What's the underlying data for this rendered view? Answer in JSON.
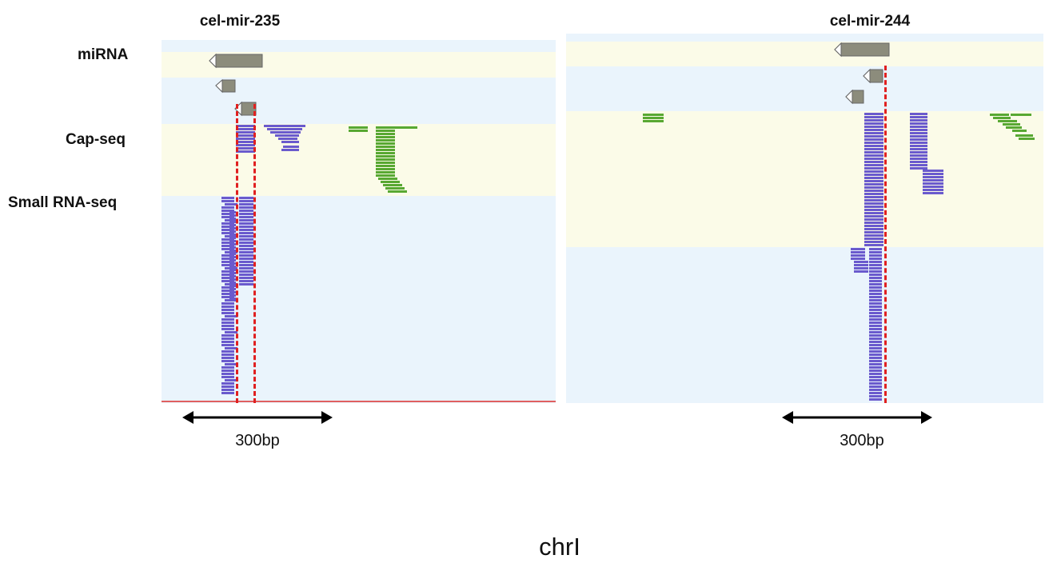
{
  "panels": [
    {
      "title": "cel-mir-235",
      "scale_label": "300bp"
    },
    {
      "title": "cel-mir-244",
      "scale_label": "300bp"
    }
  ],
  "tracks": {
    "mirna": "miRNA",
    "capseq": "Cap-seq",
    "smallrna": "Small RNA-seq"
  },
  "chromosome": "chrI",
  "colors": {
    "small_rna_reads": "#6a5acd",
    "capseq_reads": "#58a832",
    "tss_marker": "#e02020",
    "gene_feature": "#8c8c7c"
  }
}
